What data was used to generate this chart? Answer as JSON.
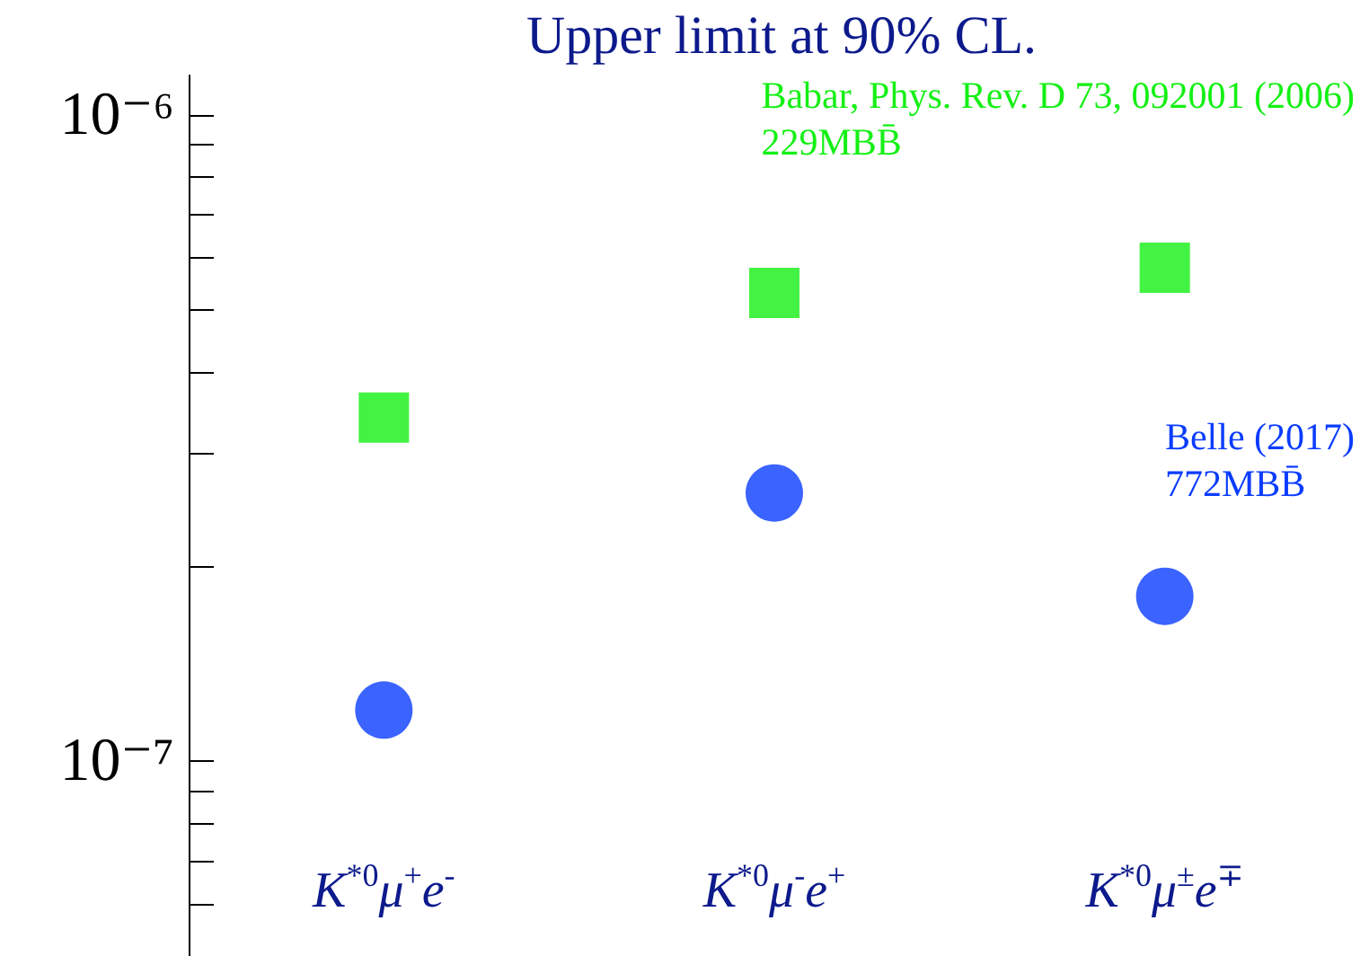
{
  "chart_data": {
    "type": "scatter",
    "title": "Upper limit at 90% CL.",
    "categories": [
      "K$^{*0}$μ$^{+}$e$^{-}$",
      "K$^{*0}$μ$^{-}$e$^{+}$",
      "K$^{*0}$μ$^{±}$e$^{∓}$"
    ],
    "series": [
      {
        "name": "Babar, Phys. Rev. D 73, 092001 (2006)",
        "color": "#14f014",
        "marker": "square",
        "values": [
          3.4e-07,
          5.3e-07,
          5.8e-07
        ]
      },
      {
        "name": "Belle (2017)",
        "color": "#0a3cff",
        "marker": "circle",
        "values": [
          1.2e-07,
          2.6e-07,
          1.8e-07
        ]
      }
    ],
    "annotations": [
      "229MBB̄",
      "772MBB̄"
    ],
    "log": true,
    "ylim": [
      5e-08,
      1.15e-06
    ],
    "yticks": [
      {
        "value": 1e-07,
        "label": "10⁻⁷"
      },
      {
        "value": 1e-06,
        "label": "10⁻⁶"
      },
      {
        "value": 6e-08,
        "label": null
      },
      {
        "value": 7e-08,
        "label": null
      },
      {
        "value": 8e-08,
        "label": null
      },
      {
        "value": 9e-08,
        "label": null
      },
      {
        "value": 2e-07,
        "label": null
      },
      {
        "value": 3e-07,
        "label": null
      },
      {
        "value": 4e-07,
        "label": null
      },
      {
        "value": 5e-07,
        "label": null
      },
      {
        "value": 6e-07,
        "label": null
      },
      {
        "value": 7e-07,
        "label": null
      },
      {
        "value": 8e-07,
        "label": null
      },
      {
        "value": 9e-07,
        "label": null
      }
    ],
    "grid": false,
    "legend": false
  }
}
